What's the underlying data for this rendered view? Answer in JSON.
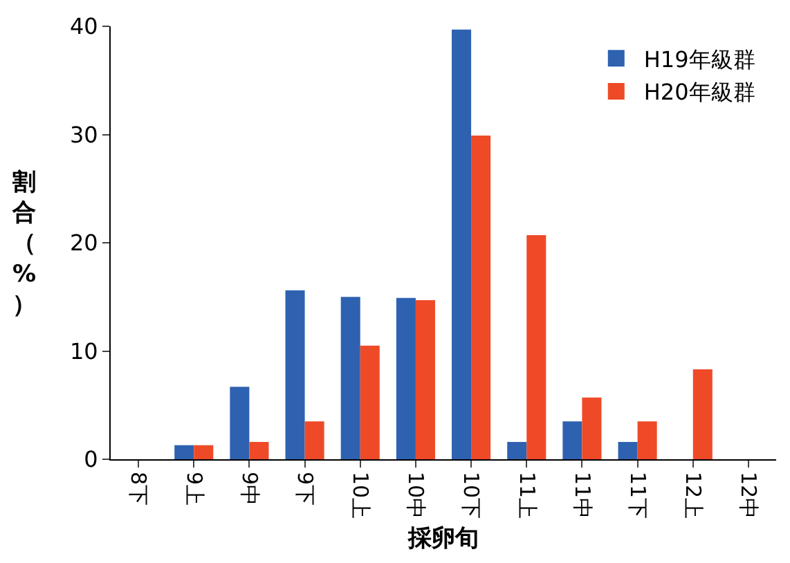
{
  "chart_data": {
    "type": "bar",
    "xlabel": "採卵旬",
    "ylabel": "割合（%）",
    "categories": [
      "8下",
      "9上",
      "9中",
      "9下",
      "10上",
      "10中",
      "10下",
      "11上",
      "11中",
      "11下",
      "12上",
      "12中"
    ],
    "series": [
      {
        "name": "H19年級群",
        "color": "#2e62b0",
        "values": [
          0,
          1.3,
          6.7,
          15.6,
          15.0,
          14.9,
          39.7,
          1.6,
          3.5,
          1.6,
          0,
          0
        ]
      },
      {
        "name": "H20年級群",
        "color": "#ee4a28",
        "values": [
          0,
          1.3,
          1.6,
          3.5,
          10.5,
          14.7,
          29.9,
          20.7,
          5.7,
          3.5,
          8.3,
          0
        ]
      }
    ],
    "ylim": [
      0,
      40
    ],
    "yticks": [
      0,
      10,
      20,
      30,
      40
    ],
    "legend": "top right"
  }
}
